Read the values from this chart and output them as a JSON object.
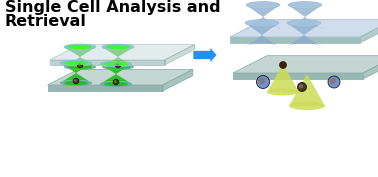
{
  "title_line1": "Single Cell Analysis and",
  "title_line2": "Retrieval",
  "title_fontsize": 11.5,
  "title_fontweight": "bold",
  "title_color": "#000000",
  "bg_color": "#ffffff",
  "arrow_color": "#1e90ff",
  "platform_top_color": "#c2d8d8",
  "platform_top_color2": "#c8dce8",
  "platform_edge_bottom": "#8ab0a8",
  "platform_edge_right": "#a0c0b8",
  "hydrogel_green_top": "#44ee44",
  "hydrogel_green_side": "#22bb22",
  "hydrogel_rim_color": "#88cccc",
  "hydrogel_rim_side": "#66aaaa",
  "blue_cyl_top": "#aac8e0",
  "blue_cyl_side": "#88aacc",
  "cone_color": "#ccdd55",
  "cell_dark": "#3a2a1a",
  "cell_blue": "#6688cc",
  "small_dot": "#443322"
}
